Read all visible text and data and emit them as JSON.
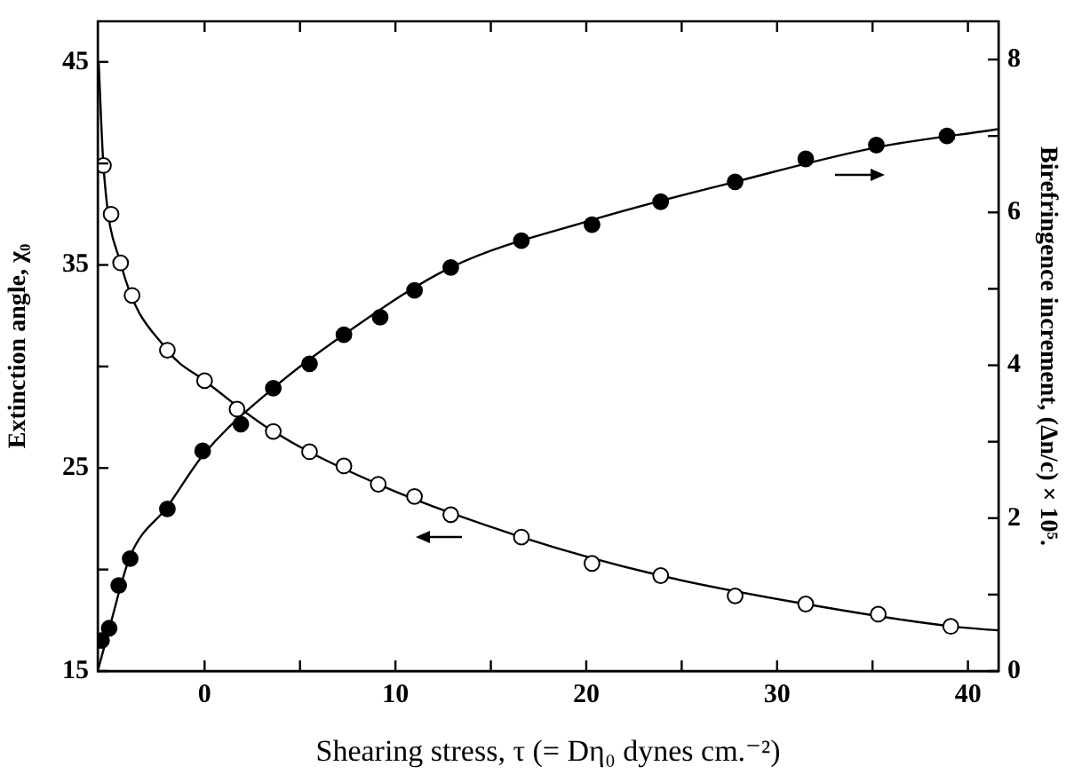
{
  "chart_data": {
    "type": "scatter",
    "xlabel": "Shearing stress, τ (= Dη₀ dynes cm.⁻²)",
    "ylabel": "Extinction angle, χ₀",
    "y2label": "Birefringence increment, (Δn/c) × 10⁵.",
    "xlim": [
      -5.6,
      41.6
    ],
    "xticks": [
      0,
      {
        "value": 5,
        "label": null
      },
      10,
      {
        "value": 15,
        "label": null
      },
      20,
      {
        "value": 25,
        "label": null
      },
      30,
      {
        "value": 35,
        "label": null
      },
      40
    ],
    "ylim": [
      15,
      47
    ],
    "yticks": [
      15,
      {
        "value": 20,
        "label": null
      },
      25,
      {
        "value": 30,
        "label": null
      },
      35,
      {
        "value": 40,
        "label": null
      },
      45
    ],
    "y2lim": [
      0,
      8.5
    ],
    "y2ticks": [
      0,
      {
        "value": 1,
        "label": null
      },
      2,
      {
        "value": 3,
        "label": null
      },
      4,
      {
        "value": 5,
        "label": null
      },
      6,
      {
        "value": 7,
        "label": null
      },
      8
    ],
    "grid": false,
    "legend": false,
    "series": [
      {
        "type": "scatter",
        "axis": "y",
        "color": "#ffffff",
        "marker": "circle",
        "x": [
          -5.3,
          -4.9,
          -4.4,
          -3.8,
          -1.95,
          0,
          1.7,
          3.6,
          5.5,
          7.3,
          9.1,
          11.0,
          12.9,
          16.6,
          20.3,
          23.9,
          27.8,
          31.5,
          35.3,
          39.1
        ],
        "values": [
          39.9,
          37.5,
          35.1,
          33.5,
          30.8,
          29.3,
          27.9,
          26.8,
          25.8,
          25.1,
          24.2,
          23.6,
          22.7,
          21.6,
          20.3,
          19.7,
          18.7,
          18.3,
          17.8,
          17.2
        ]
      },
      {
        "type": "scatter",
        "axis": "y2",
        "color": "#000000",
        "marker": "circle",
        "x": [
          -5.4,
          -5.0,
          -4.5,
          -3.9,
          -1.95,
          -0.1,
          1.9,
          3.6,
          5.5,
          7.3,
          9.2,
          11.0,
          12.9,
          16.6,
          20.3,
          23.9,
          27.8,
          31.5,
          35.2,
          38.9
        ],
        "values": [
          0.4,
          0.56,
          1.12,
          1.47,
          2.12,
          2.88,
          3.23,
          3.7,
          4.02,
          4.4,
          4.63,
          4.98,
          5.28,
          5.63,
          5.84,
          6.14,
          6.4,
          6.7,
          6.88,
          7.0
        ]
      },
      {
        "type": "line",
        "axis": "y",
        "color": "#000000",
        "marker": "none",
        "line_style": "solid",
        "x": [
          -5.55,
          -5.3,
          -4.4,
          -1.95,
          0,
          3.6,
          9.1,
          16.6,
          23.9,
          31.5,
          39.1,
          41.6
        ],
        "values": [
          45,
          39.9,
          35.1,
          30.8,
          29.3,
          26.8,
          24.2,
          21.6,
          19.7,
          18.3,
          17.2,
          17.0
        ]
      },
      {
        "type": "line",
        "axis": "y2",
        "color": "#000000",
        "marker": "none",
        "line_style": "solid",
        "x": [
          -5.6,
          -5.0,
          -3.9,
          -1.95,
          0,
          3.6,
          7.3,
          12.9,
          20.3,
          27.8,
          35.2,
          41.6
        ],
        "values": [
          0,
          0.55,
          1.5,
          2.15,
          2.85,
          3.7,
          4.4,
          5.28,
          5.9,
          6.4,
          6.85,
          7.09
        ]
      }
    ]
  }
}
